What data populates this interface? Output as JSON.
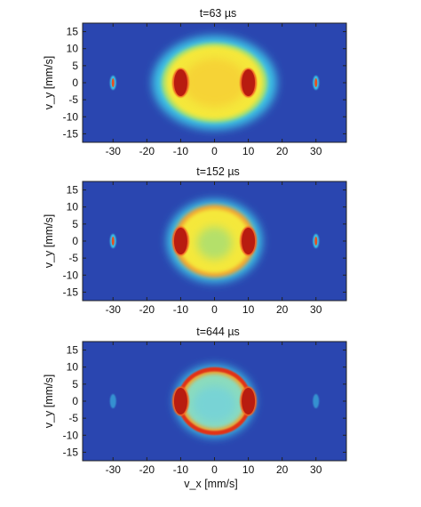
{
  "chart_data": [
    {
      "type": "heatmap",
      "title": "t=63 µs",
      "xlabel": "",
      "ylabel": "v_y [mm/s]",
      "xlim": [
        -39,
        39
      ],
      "ylim": [
        -17.5,
        17.5
      ],
      "xticks": [
        -30,
        -20,
        -10,
        0,
        10,
        20,
        30
      ],
      "yticks": [
        15,
        10,
        5,
        0,
        -5,
        -10,
        -15
      ],
      "colors": {
        "background": "#2a46b0",
        "halo": "#3ec4e6",
        "core": "#f5e83a",
        "peak": "#b81c10"
      },
      "features": {
        "cloud": {
          "cx": 0,
          "cy": 0,
          "rx": 17,
          "ry": 13,
          "shape": "filled"
        },
        "side_peaks": [
          {
            "x": -10,
            "y": 0
          },
          {
            "x": 10,
            "y": 0
          }
        ],
        "outer_peaks": [
          {
            "x": -30,
            "y": 0
          },
          {
            "x": 30,
            "y": 0
          }
        ]
      }
    },
    {
      "type": "heatmap",
      "title": "t=152 µs",
      "xlabel": "",
      "ylabel": "v_y [mm/s]",
      "xlim": [
        -39,
        39
      ],
      "ylim": [
        -17.5,
        17.5
      ],
      "xticks": [
        -30,
        -20,
        -10,
        0,
        10,
        20,
        30
      ],
      "yticks": [
        15,
        10,
        5,
        0,
        -5,
        -10,
        -15
      ],
      "colors": {
        "background": "#2a46b0",
        "halo": "#3ec4e6",
        "core": "#f5e83a",
        "peak": "#b81c10"
      },
      "features": {
        "cloud": {
          "cx": 0,
          "cy": 0,
          "rx": 13,
          "ry": 11.5,
          "shape": "shell-forming"
        },
        "side_peaks": [
          {
            "x": -10,
            "y": 0
          },
          {
            "x": 10,
            "y": 0
          }
        ],
        "outer_peaks": [
          {
            "x": -30,
            "y": 0
          },
          {
            "x": 30,
            "y": 0
          }
        ]
      }
    },
    {
      "type": "heatmap",
      "title": "t=644 µs",
      "xlabel": "v_x [mm/s]",
      "ylabel": "v_y [mm/s]",
      "xlim": [
        -39,
        39
      ],
      "ylim": [
        -17.5,
        17.5
      ],
      "xticks": [
        -30,
        -20,
        -10,
        0,
        10,
        20,
        30
      ],
      "yticks": [
        15,
        10,
        5,
        0,
        -5,
        -10,
        -15
      ],
      "colors": {
        "background": "#2a46b0",
        "halo": "#3ec4e6",
        "core": "#f5e83a",
        "peak": "#b81c10"
      },
      "features": {
        "cloud": {
          "cx": 0,
          "cy": 0,
          "rx": 11,
          "ry": 10,
          "shape": "shell"
        },
        "side_peaks": [
          {
            "x": -10,
            "y": 0
          },
          {
            "x": 10,
            "y": 0
          }
        ],
        "outer_peaks": [
          {
            "x": -30,
            "y": 0
          },
          {
            "x": 30,
            "y": 0
          }
        ]
      }
    }
  ]
}
